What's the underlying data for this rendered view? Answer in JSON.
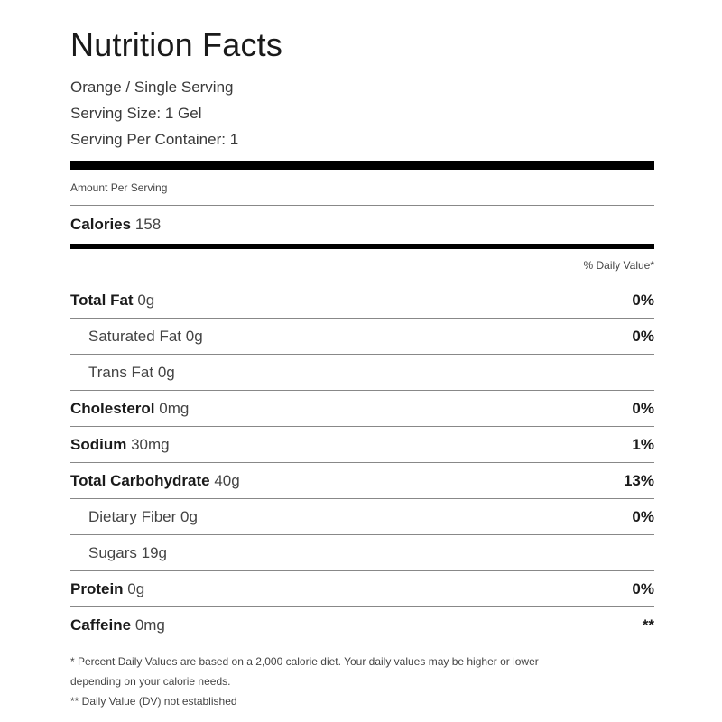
{
  "title": "Nutrition Facts",
  "product": "Orange / Single Serving",
  "serving_size": "Serving Size: 1 Gel",
  "serving_per_container": "Serving Per Container: 1",
  "amount_per_serving": "Amount Per Serving",
  "calories": {
    "label": "Calories",
    "value": "158"
  },
  "daily_value_header": "% Daily Value*",
  "nutrients": [
    {
      "label": "Total Fat",
      "amount": "0g",
      "dv": "0%"
    },
    {
      "label": "Saturated Fat",
      "amount": "0g",
      "dv": "0%"
    },
    {
      "label": "Trans Fat",
      "amount": "0g",
      "dv": ""
    },
    {
      "label": "Cholesterol",
      "amount": "0mg",
      "dv": "0%"
    },
    {
      "label": "Sodium",
      "amount": "30mg",
      "dv": "1%"
    },
    {
      "label": "Total Carbohydrate",
      "amount": "40g",
      "dv": "13%"
    },
    {
      "label": "Dietary Fiber",
      "amount": "0g",
      "dv": "0%"
    },
    {
      "label": "Sugars",
      "amount": "19g",
      "dv": ""
    },
    {
      "label": "Protein",
      "amount": "0g",
      "dv": "0%"
    },
    {
      "label": "Caffeine",
      "amount": "0mg",
      "dv": "**"
    }
  ],
  "footnotes": {
    "line1": "* Percent Daily Values are based on a 2,000 calorie diet. Your daily values may be higher or lower",
    "line2": "depending on your calorie needs.",
    "line3": "** Daily Value (DV) not established"
  }
}
